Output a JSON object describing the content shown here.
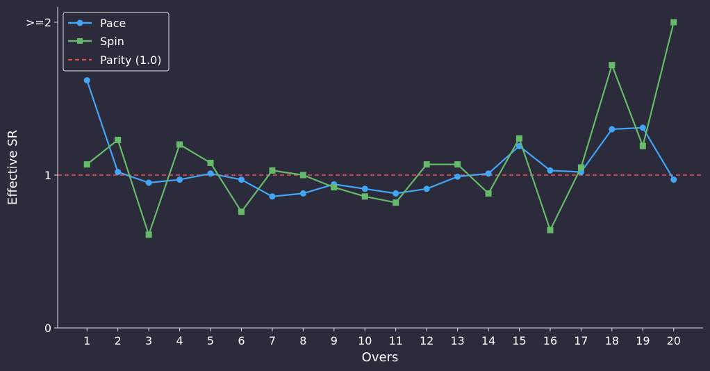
{
  "chart_data": {
    "type": "line",
    "xlabel": "Overs",
    "ylabel": "Effective SR",
    "x": [
      1,
      2,
      3,
      4,
      5,
      6,
      7,
      8,
      9,
      10,
      11,
      12,
      13,
      14,
      15,
      16,
      17,
      18,
      19,
      20
    ],
    "x_tick_labels": [
      "1",
      "2",
      "3",
      "4",
      "5",
      "6",
      "7",
      "8",
      "9",
      "10",
      "11",
      "12",
      "13",
      "14",
      "15",
      "16",
      "17",
      "18",
      "19",
      "20"
    ],
    "y_ticks": [
      0,
      1,
      2
    ],
    "y_tick_labels": [
      "0",
      "1",
      ">=2"
    ],
    "xlim": [
      0.05,
      20.95
    ],
    "ylim": [
      0,
      2.1
    ],
    "series": [
      {
        "name": "Pace",
        "color": "#42a5f5",
        "marker": "circle",
        "values": [
          1.62,
          1.02,
          0.95,
          0.97,
          1.01,
          0.97,
          0.86,
          0.88,
          0.94,
          0.91,
          0.88,
          0.91,
          0.99,
          1.01,
          1.19,
          1.03,
          1.02,
          1.3,
          1.31,
          0.97
        ]
      },
      {
        "name": "Spin",
        "color": "#66bb6a",
        "marker": "square",
        "values": [
          1.07,
          1.23,
          0.61,
          1.2,
          1.08,
          0.76,
          1.03,
          1.0,
          0.92,
          0.86,
          0.82,
          1.07,
          1.07,
          0.88,
          1.24,
          0.64,
          1.05,
          1.72,
          1.19,
          2.0
        ]
      }
    ],
    "reference_line": {
      "name": "Parity (1.0)",
      "y": 1.0,
      "color": "#ef5350",
      "style": "dashed"
    },
    "legend": {
      "placement": "top-left",
      "entries": [
        "Pace",
        "Spin",
        "Parity (1.0)"
      ]
    },
    "grid": false,
    "colors": {
      "background": "#2b2b3c",
      "axis": "#e0e0e0",
      "text": "#ffffff"
    }
  }
}
